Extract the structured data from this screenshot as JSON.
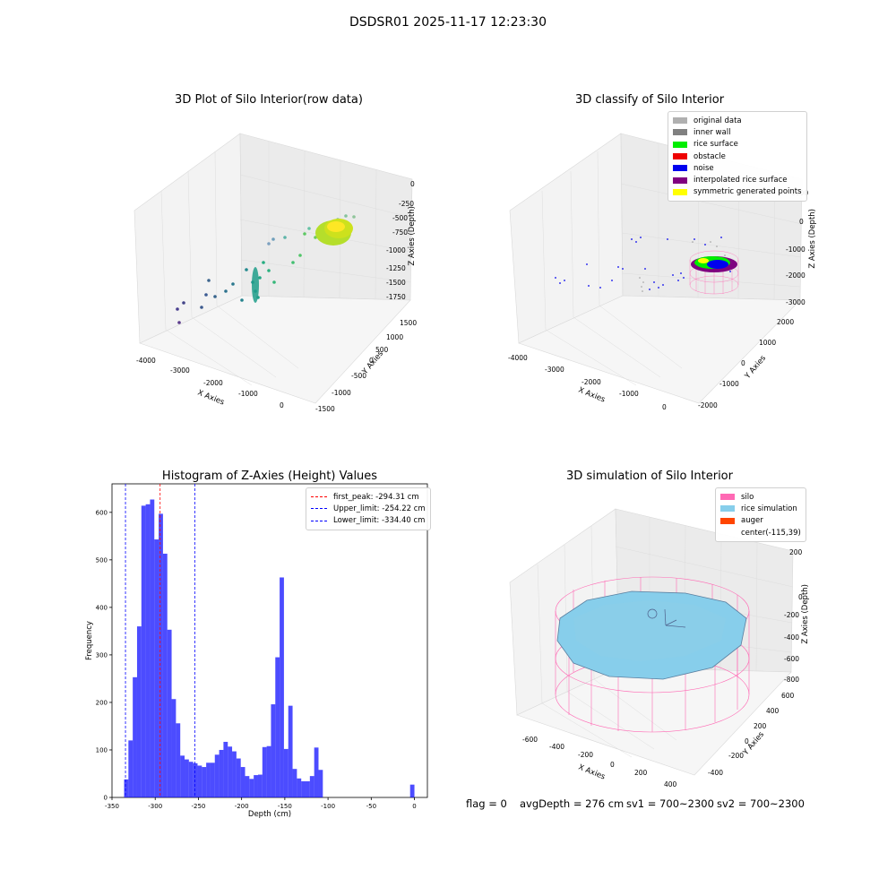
{
  "suptitle": "DSDSR01 2025-11-17 12:23:30",
  "panels": {
    "raw": {
      "title": "3D Plot of Silo Interior(row data)",
      "xlabel": "X Axies",
      "ylabel": "Y Axies",
      "zlabel": "Z Axies (Depth)",
      "xticks": [
        "-4000",
        "-3000",
        "-2000",
        "-1000",
        "0"
      ],
      "yticks": [
        "-1500",
        "-1000",
        "-500",
        "0",
        "500",
        "1000",
        "1500"
      ],
      "zticks": [
        "0",
        "-250",
        "-500",
        "-750",
        "-1000",
        "-1250",
        "-1500",
        "-1750"
      ]
    },
    "classify": {
      "title": "3D classify of Silo Interior",
      "xlabel": "X Axies",
      "ylabel": "Y Axies",
      "zlabel": "Z Axies (Depth)",
      "xticks": [
        "-4000",
        "-3000",
        "-2000",
        "-1000",
        "0"
      ],
      "yticks": [
        "-2000",
        "-1000",
        "0",
        "1000",
        "2000"
      ],
      "zticks": [
        "1000",
        "0",
        "-1000",
        "-2000",
        "-3000"
      ],
      "legend": [
        {
          "label": "original data",
          "color": "#b0b0b0"
        },
        {
          "label": "inner wall",
          "color": "#808080"
        },
        {
          "label": "rice surface",
          "color": "#00ee00"
        },
        {
          "label": "obstacle",
          "color": "#ee0000"
        },
        {
          "label": "noise",
          "color": "#0000ee"
        },
        {
          "label": "interpolated rice surface",
          "color": "#800080"
        },
        {
          "label": "symmetric generated points",
          "color": "#ffff00"
        }
      ]
    },
    "hist": {
      "title": "Histogram of Z-Axies (Height) Values",
      "xlabel": "Depth (cm)",
      "ylabel": "Frequency",
      "legend": [
        {
          "label": "first_peak: -294.31 cm",
          "color": "#ff0000"
        },
        {
          "label": "Upper_limit: -254.22 cm",
          "color": "#0000ff"
        },
        {
          "label": "Lower_limit: -334.40 cm",
          "color": "#0000ff"
        }
      ]
    },
    "sim": {
      "title": "3D simulation of Silo Interior",
      "xlabel": "X Axies",
      "ylabel": "Y Axies",
      "zlabel": "Z Axies (Depth)",
      "xticks": [
        "-600",
        "-400",
        "-200",
        "0",
        "200",
        "400"
      ],
      "yticks": [
        "-400",
        "-200",
        "0",
        "200",
        "400",
        "600"
      ],
      "zticks": [
        "200",
        "0",
        "-200",
        "-400",
        "-600",
        "-800"
      ],
      "legend": [
        {
          "label": "silo",
          "color": "#ff69b4"
        },
        {
          "label": "rice simulation",
          "color": "#87ceeb"
        },
        {
          "label": "auger",
          "color": "#ff4500"
        },
        {
          "label": "center(-115,39)",
          "color": ""
        }
      ]
    }
  },
  "chart_data": [
    {
      "type": "bar",
      "title": "Histogram of Z-Axies (Height) Values",
      "xlabel": "Depth (cm)",
      "ylabel": "Frequency",
      "xlim": [
        -350,
        15
      ],
      "ylim": [
        0,
        660
      ],
      "xticks": [
        -350,
        -300,
        -250,
        -200,
        -150,
        -100,
        -50,
        0
      ],
      "yticks": [
        0,
        100,
        200,
        300,
        400,
        500,
        600
      ],
      "bar_color": "#0000ff",
      "bins": [
        {
          "x": -336,
          "w": 5,
          "y": 38
        },
        {
          "x": -331,
          "w": 5,
          "y": 120
        },
        {
          "x": -326,
          "w": 5,
          "y": 253
        },
        {
          "x": -321,
          "w": 5,
          "y": 360
        },
        {
          "x": -316,
          "w": 5,
          "y": 614
        },
        {
          "x": -311,
          "w": 5,
          "y": 617
        },
        {
          "x": -306,
          "w": 5,
          "y": 627
        },
        {
          "x": -301,
          "w": 5,
          "y": 543
        },
        {
          "x": -296,
          "w": 5,
          "y": 597
        },
        {
          "x": -291,
          "w": 5,
          "y": 513
        },
        {
          "x": -286,
          "w": 5,
          "y": 353
        },
        {
          "x": -281,
          "w": 5,
          "y": 207
        },
        {
          "x": -276,
          "w": 5,
          "y": 156
        },
        {
          "x": -271,
          "w": 5,
          "y": 88
        },
        {
          "x": -266,
          "w": 5,
          "y": 80
        },
        {
          "x": -261,
          "w": 5,
          "y": 75
        },
        {
          "x": -256,
          "w": 5,
          "y": 72
        },
        {
          "x": -251,
          "w": 5,
          "y": 67
        },
        {
          "x": -246,
          "w": 5,
          "y": 64
        },
        {
          "x": -241,
          "w": 5,
          "y": 73
        },
        {
          "x": -236,
          "w": 5,
          "y": 73
        },
        {
          "x": -231,
          "w": 5,
          "y": 90
        },
        {
          "x": -226,
          "w": 5,
          "y": 100
        },
        {
          "x": -221,
          "w": 5,
          "y": 117
        },
        {
          "x": -216,
          "w": 5,
          "y": 107
        },
        {
          "x": -211,
          "w": 5,
          "y": 97
        },
        {
          "x": -206,
          "w": 5,
          "y": 82
        },
        {
          "x": -201,
          "w": 5,
          "y": 64
        },
        {
          "x": -196,
          "w": 5,
          "y": 45
        },
        {
          "x": -191,
          "w": 5,
          "y": 39
        },
        {
          "x": -186,
          "w": 5,
          "y": 47
        },
        {
          "x": -181,
          "w": 5,
          "y": 48
        },
        {
          "x": -176,
          "w": 5,
          "y": 106
        },
        {
          "x": -171,
          "w": 5,
          "y": 108
        },
        {
          "x": -166,
          "w": 5,
          "y": 196
        },
        {
          "x": -161,
          "w": 5,
          "y": 295
        },
        {
          "x": -156,
          "w": 5,
          "y": 463
        },
        {
          "x": -151,
          "w": 5,
          "y": 102
        },
        {
          "x": -146,
          "w": 5,
          "y": 193
        },
        {
          "x": -141,
          "w": 5,
          "y": 60
        },
        {
          "x": -136,
          "w": 5,
          "y": 40
        },
        {
          "x": -131,
          "w": 5,
          "y": 34
        },
        {
          "x": -126,
          "w": 5,
          "y": 34
        },
        {
          "x": -121,
          "w": 5,
          "y": 45
        },
        {
          "x": -116,
          "w": 5,
          "y": 105
        },
        {
          "x": -111,
          "w": 5,
          "y": 58
        },
        {
          "x": -5,
          "w": 5,
          "y": 27
        }
      ],
      "vlines": [
        {
          "name": "first_peak",
          "x": -294.31,
          "color": "#ff0000"
        },
        {
          "name": "Upper_limit",
          "x": -254.22,
          "color": "#0000ff"
        },
        {
          "name": "Lower_limit",
          "x": -334.4,
          "color": "#0000ff"
        }
      ],
      "legend_position": "top-right"
    }
  ],
  "footer": {
    "flag": "flag = 0",
    "avg": "avgDepth = 276 cm",
    "sv1": "sv1 = 700~2300",
    "sv2": "sv2 = 700~2300"
  }
}
